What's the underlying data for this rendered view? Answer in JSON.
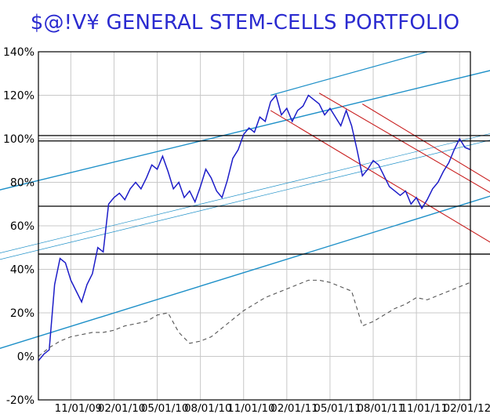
{
  "chart_data": {
    "type": "line",
    "title": "$@!V¥ GENERAL STEM-CELLS PORTFOLIO",
    "xlabel": "",
    "ylabel": "",
    "yticks": [
      "140%",
      "120%",
      "100%",
      "80%",
      "60%",
      "40%",
      "20%",
      "0%",
      "-20%"
    ],
    "ytick_values": [
      140,
      120,
      100,
      80,
      60,
      40,
      20,
      0,
      -20
    ],
    "xticks": [
      "11/01/09",
      "02/01/10",
      "05/01/10",
      "08/01/10",
      "11/01/10",
      "02/01/11",
      "05/01/11",
      "08/01/11",
      "11/01/11",
      "02/01/12"
    ],
    "ylim": [
      -20,
      140
    ],
    "grid": true,
    "legend": "none",
    "horizontal_lines": [
      101.5,
      99,
      69,
      47
    ],
    "series": [
      {
        "color": "#1c1cc8",
        "style": "solid",
        "x": [
          0,
          0.5,
          1,
          1.5,
          2,
          2.5,
          3,
          3.5,
          4,
          4.5,
          5,
          5.5,
          6,
          6.5,
          7,
          7.5,
          8,
          8.5,
          9,
          9.5,
          10,
          10.5,
          11,
          11.5,
          12,
          12.5,
          13,
          13.5,
          14,
          14.5,
          15,
          15.5,
          16,
          16.5,
          17,
          17.5,
          18,
          18.5,
          19,
          19.5,
          20,
          20.5,
          21,
          21.5,
          22,
          22.5,
          23,
          23.5,
          24,
          24.5,
          25,
          25.5,
          26,
          26.5,
          27,
          27.5,
          28,
          28.5,
          29,
          29.5,
          30,
          30.5,
          31,
          31.5,
          32,
          32.5,
          33,
          33.5,
          34,
          34.5,
          35,
          35.5,
          36,
          36.5,
          37,
          37.5,
          38,
          38.5,
          39,
          39.5,
          40
        ],
        "values": [
          -2,
          1,
          3,
          33,
          45,
          43,
          35,
          30,
          25,
          33,
          38,
          50,
          48,
          70,
          73,
          75,
          72,
          77,
          80,
          77,
          82,
          88,
          86,
          92,
          85,
          77,
          80,
          73,
          76,
          71,
          78,
          86,
          82,
          76,
          73,
          81,
          91,
          95,
          102,
          105,
          103,
          110,
          108,
          117,
          120,
          111,
          114,
          108,
          113,
          115,
          120,
          118,
          116,
          111,
          114,
          110,
          106,
          113,
          106,
          95,
          83,
          86,
          90,
          88,
          83,
          78,
          76,
          74,
          76,
          70,
          73,
          68,
          72,
          77,
          80,
          85,
          89,
          95,
          100,
          96,
          95
        ]
      },
      {
        "color": "#555555",
        "style": "dashed",
        "x": [
          0,
          1,
          2,
          3,
          4,
          5,
          6,
          7,
          8,
          9,
          10,
          11,
          12,
          13,
          14,
          15,
          16,
          17,
          18,
          19,
          20,
          21,
          22,
          23,
          24,
          25,
          26,
          27,
          28,
          29,
          30,
          31,
          32,
          33,
          34,
          35,
          36,
          37,
          38,
          39,
          40
        ],
        "values": [
          0,
          4,
          7,
          9,
          10,
          11,
          11,
          12,
          14,
          15,
          16,
          19,
          20,
          11,
          6,
          7,
          9,
          13,
          17,
          21,
          24,
          27,
          29,
          31,
          33,
          35,
          35,
          34,
          32,
          30,
          14,
          16,
          19,
          22,
          24,
          27,
          26,
          28,
          30,
          32,
          34
        ]
      }
    ]
  }
}
